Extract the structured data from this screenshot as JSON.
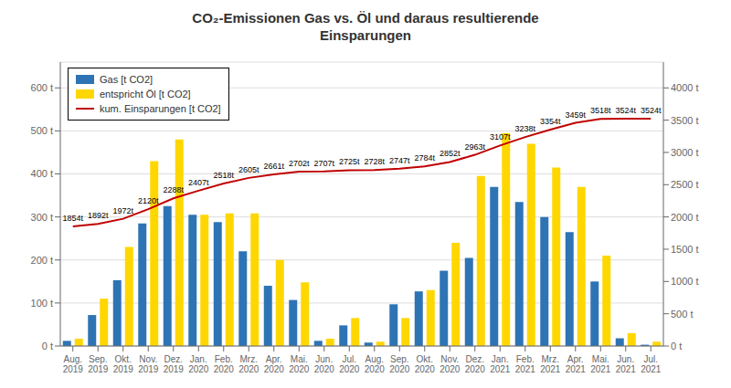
{
  "chart_data": {
    "type": "bar",
    "title": "CO₂-Emissionen Gas vs. Öl und daraus resultierende\nEinsparungen",
    "categories": [
      "Aug.\n2019",
      "Sep.\n2019",
      "Okt.\n2019",
      "Nov.\n2019",
      "Dez.\n2019",
      "Jan.\n2020",
      "Feb.\n2020",
      "Mrz.\n2020",
      "Apr.\n2020",
      "Mai.\n2020",
      "Jun.\n2020",
      "Jul.\n2020",
      "Aug.\n2020",
      "Sep.\n2020",
      "Okt.\n2020",
      "Nov.\n2020",
      "Dez.\n2020",
      "Jan.\n2021",
      "Feb.\n2021",
      "Mrz.\n2021",
      "Apr.\n2021",
      "Mai.\n2021",
      "Jun.\n2021",
      "Jul.\n2021"
    ],
    "series": [
      {
        "name": "Gas [t CO2]",
        "type": "bar",
        "color": "#2E74B5",
        "values": [
          12,
          72,
          153,
          285,
          325,
          305,
          288,
          220,
          140,
          107,
          12,
          48,
          8,
          97,
          127,
          175,
          205,
          370,
          335,
          300,
          265,
          150,
          18,
          3
        ]
      },
      {
        "name": "entspricht Öl [t CO2]",
        "type": "bar",
        "color": "#FFD700",
        "values": [
          17,
          110,
          230,
          430,
          480,
          305,
          308,
          308,
          200,
          148,
          17,
          65,
          10,
          65,
          130,
          240,
          395,
          495,
          470,
          415,
          370,
          210,
          30,
          10
        ]
      },
      {
        "name": "kum. Einsparungen [t CO2]",
        "type": "line",
        "color": "#C00000",
        "axis": "y2",
        "data_labels": true,
        "values": [
          1854,
          1892,
          1972,
          2120,
          2288,
          2407,
          2518,
          2605,
          2661,
          2702,
          2707,
          2725,
          2728,
          2747,
          2784,
          2852,
          2963,
          3107,
          3238,
          3354,
          3459,
          3518,
          3524,
          3524
        ],
        "value_labels": [
          "1854t",
          "1892t",
          "1972t",
          "2120t",
          "2288t",
          "2407t",
          "2518t",
          "2605t",
          "2661t",
          "2702t",
          "2707t",
          "2725t",
          "2728t",
          "2747t",
          "2784t",
          "2852t",
          "2963t",
          "3107t",
          "3238t",
          "3354t",
          "3459t",
          "3518t",
          "3524t",
          "3524t"
        ]
      }
    ],
    "ylim": [
      0,
      660
    ],
    "yticks": [
      {
        "value": 0,
        "label": "0 t"
      },
      {
        "value": 100,
        "label": "100 t"
      },
      {
        "value": 200,
        "label": "200 t"
      },
      {
        "value": 300,
        "label": "300 t"
      },
      {
        "value": 400,
        "label": "400 t"
      },
      {
        "value": 500,
        "label": "500 t"
      },
      {
        "value": 600,
        "label": "600 t"
      }
    ],
    "y2lim": [
      0,
      4400
    ],
    "y2ticks": [
      {
        "value": 0,
        "label": "0 t"
      },
      {
        "value": 500,
        "label": "500 t"
      },
      {
        "value": 1000,
        "label": "1000 t"
      },
      {
        "value": 1500,
        "label": "1500 t"
      },
      {
        "value": 2000,
        "label": "2000 t"
      },
      {
        "value": 2500,
        "label": "2500 t"
      },
      {
        "value": 3000,
        "label": "3000 t"
      },
      {
        "value": 3500,
        "label": "3500 t"
      },
      {
        "value": 4000,
        "label": "4000 t"
      }
    ],
    "grid": true,
    "legend": "upper left"
  }
}
